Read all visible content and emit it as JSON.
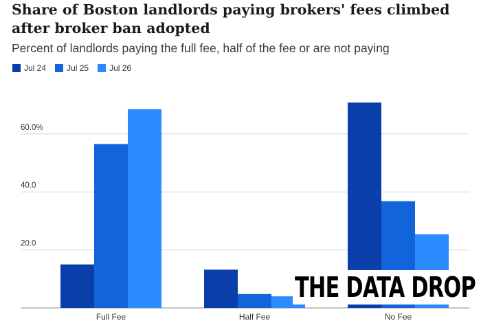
{
  "chart_data": {
    "type": "bar",
    "title": "Share of Boston landlords paying brokers' fees climbed after broker ban adopted",
    "subtitle": "Percent of landlords paying the full fee, half of the fee or are not paying",
    "categories": [
      "Full Fee",
      "Half Fee",
      "No Fee"
    ],
    "series": [
      {
        "name": "Jul 24",
        "color": "#0a3ea8",
        "values": [
          15.0,
          13.2,
          70.8
        ]
      },
      {
        "name": "Jul 25",
        "color": "#1264da",
        "values": [
          56.5,
          4.8,
          36.8
        ]
      },
      {
        "name": "Jul 26",
        "color": "#2a8cff",
        "values": [
          68.5,
          4.0,
          25.4
        ]
      }
    ],
    "y_ticks": [
      "20.0",
      "40.0",
      "60.0%"
    ],
    "ylim": [
      0,
      75
    ],
    "xlabel": "",
    "ylabel": "",
    "grid": "horizontal",
    "legend_position": "top-left"
  },
  "watermark": "THE DATA DROP"
}
